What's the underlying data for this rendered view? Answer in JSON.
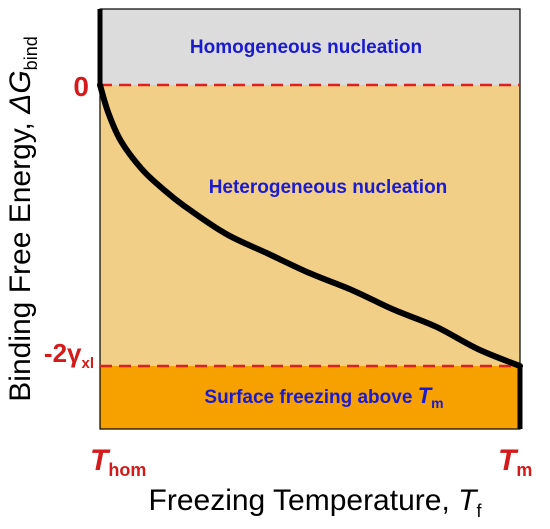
{
  "chart_data": {
    "type": "diagram",
    "regions": [
      {
        "name": "homogeneous",
        "label": "Homogeneous nucleation",
        "color": "#dcdcdc"
      },
      {
        "name": "heterogeneous",
        "label": "Heterogeneous nucleation",
        "color": "#f2cf86"
      },
      {
        "name": "surface",
        "label": "Surface freezing above ",
        "label_sym": "T",
        "label_sub": "m",
        "color": "#f7a100"
      }
    ],
    "y_axis": {
      "title": "Binding Free Energy, ",
      "title_sym": "ΔG",
      "title_sub": "bind",
      "ticks": [
        {
          "name": "zero",
          "label": "0"
        },
        {
          "name": "neg-2gamma",
          "label": "-2γ",
          "sub": "xl"
        }
      ]
    },
    "x_axis": {
      "title": "Freezing Temperature, ",
      "title_sym": "T",
      "title_sub": "f",
      "ticks": [
        {
          "name": "thom",
          "label": "T",
          "sub": "hom"
        },
        {
          "name": "tm",
          "label": "T",
          "sub": "m"
        }
      ]
    },
    "curve": {
      "x": [
        0,
        0.02,
        0.05,
        0.1,
        0.15,
        0.2,
        0.3,
        0.4,
        0.5,
        0.6,
        0.7,
        0.8,
        0.9,
        1.0
      ],
      "y": [
        0,
        0.1,
        0.2,
        0.3,
        0.37,
        0.43,
        0.53,
        0.6,
        0.67,
        0.73,
        0.8,
        0.86,
        0.94,
        1.0
      ]
    },
    "colors": {
      "curve": "#000000",
      "dashed": "#e02020",
      "tick_labels": "#d41a1a",
      "region_text": "#1a1ad0"
    }
  }
}
